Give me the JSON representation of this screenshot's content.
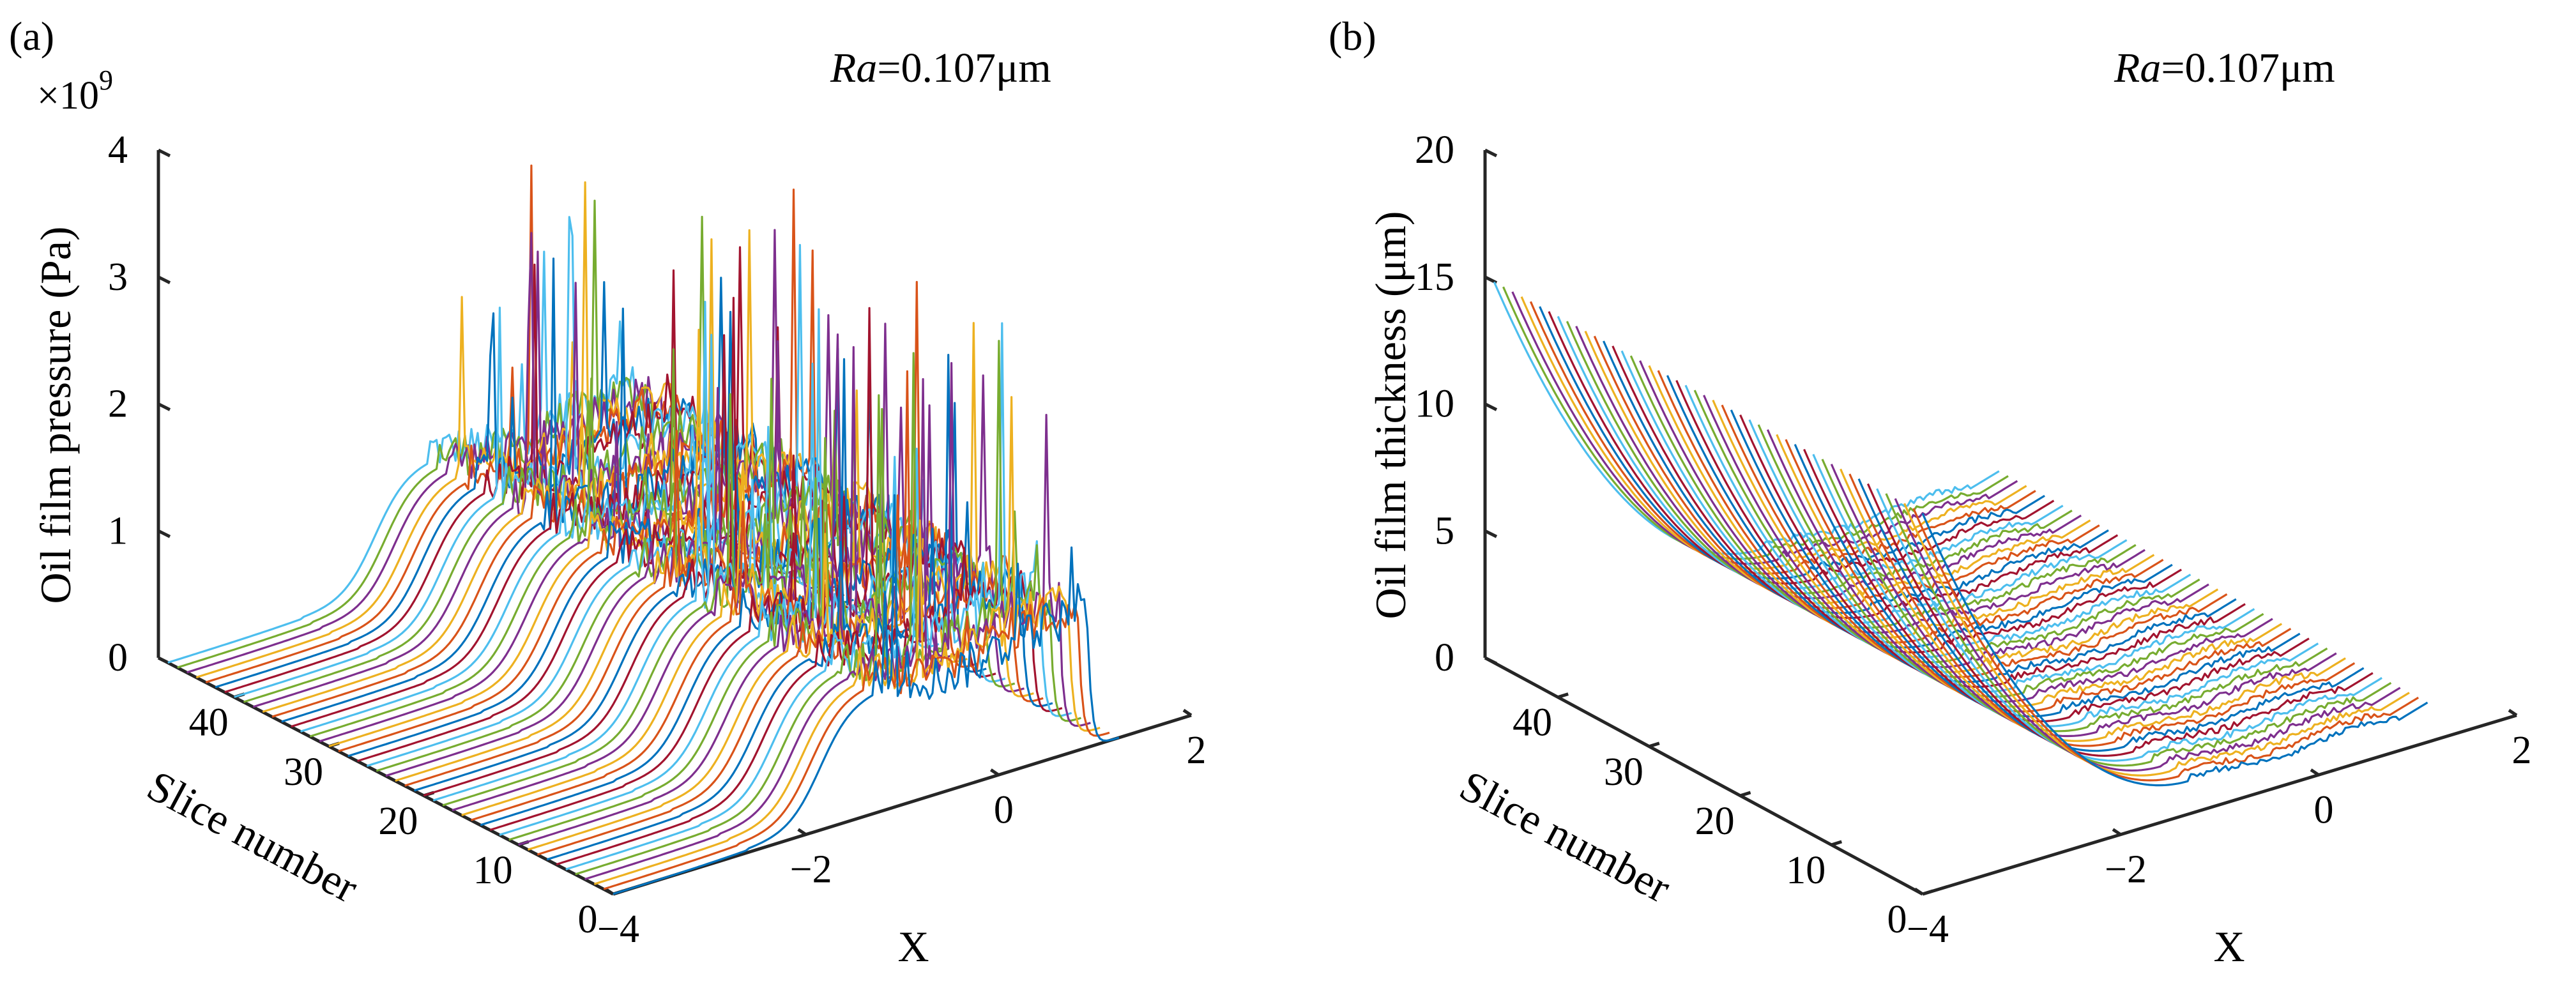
{
  "chart_data": [
    {
      "type": "line",
      "subtype": "3d-waterfall",
      "panel_label": "(a)",
      "annotation": {
        "italic": "Ra",
        "rest": "=0.107μm"
      },
      "exponent_label": {
        "base": "×10",
        "power": "9"
      },
      "zlabel": "Oil film pressure (Pa)",
      "ylabel": "Slice number",
      "xlabel": "X",
      "z_ticks": [
        "0",
        "1",
        "2",
        "3",
        "4"
      ],
      "y_ticks": [
        "0",
        "10",
        "20",
        "30",
        "40"
      ],
      "x_ticks": [
        "−4",
        "−2",
        "0",
        "2"
      ],
      "zlim": [
        0,
        4
      ],
      "xlim": [
        -4,
        2
      ],
      "ylim": [
        0,
        48
      ],
      "slices": 48,
      "units_z": "×10^9 Pa",
      "profile_description": "near zero for X<-2, rises to about 0.9-1.2 (×10^9 Pa) across the contact zone from X≈-1.5 to X≈+0.9 with rough spikes up to about 3.7, then drops to zero near X≈1",
      "peak_spike_max": 3.7
    },
    {
      "type": "line",
      "subtype": "3d-waterfall",
      "panel_label": "(b)",
      "annotation": {
        "italic": "Ra",
        "rest": "=0.107μm"
      },
      "zlabel": "Oil film thickness (μm)",
      "ylabel": "Slice number",
      "xlabel": "X",
      "z_ticks": [
        "0",
        "5",
        "10",
        "15",
        "20"
      ],
      "y_ticks": [
        "0",
        "10",
        "20",
        "30",
        "40"
      ],
      "x_ticks": [
        "−4",
        "−2",
        "0",
        "2"
      ],
      "zlim": [
        0,
        20
      ],
      "xlim": [
        -4,
        2
      ],
      "ylim": [
        0,
        48
      ],
      "slices": 48,
      "profile_description": "about 15 μm at X=-4, decreasing parabolically to about 1-2 μm at the contact zone, slight bump near the outlet X≈1",
      "start_thickness": 15,
      "min_thickness": 1.2
    }
  ],
  "colors": [
    "#0072bd",
    "#d95319",
    "#edb120",
    "#7e2f8e",
    "#77ac30",
    "#4dbeee",
    "#a2142f"
  ]
}
